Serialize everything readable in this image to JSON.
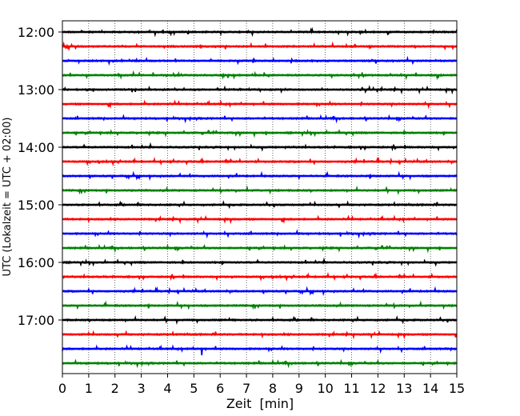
{
  "chart_data": {
    "type": "line",
    "title": "",
    "xlabel": "Zeit  [min]",
    "ylabel": "UTC (Lokalzeit = UTC + 02:00)",
    "xlim": [
      0,
      15
    ],
    "x_ticks": [
      "0",
      "1",
      "2",
      "3",
      "4",
      "5",
      "6",
      "7",
      "8",
      "9",
      "10",
      "11",
      "12",
      "13",
      "14",
      "15"
    ],
    "y_tick_labels": [
      "12:00",
      "13:00",
      "14:00",
      "15:00",
      "16:00",
      "17:00"
    ],
    "grid": "vertical dotted at each minute",
    "trace_interval_minutes": 15,
    "colors_cycle": [
      "#000000",
      "#ff0000",
      "#0000ff",
      "#008000"
    ],
    "series": [
      {
        "start": "12:00",
        "color": "#000000"
      },
      {
        "start": "12:15",
        "color": "#ff0000"
      },
      {
        "start": "12:30",
        "color": "#0000ff"
      },
      {
        "start": "12:45",
        "color": "#008000"
      },
      {
        "start": "13:00",
        "color": "#000000"
      },
      {
        "start": "13:15",
        "color": "#ff0000"
      },
      {
        "start": "13:30",
        "color": "#0000ff"
      },
      {
        "start": "13:45",
        "color": "#008000"
      },
      {
        "start": "14:00",
        "color": "#000000"
      },
      {
        "start": "14:15",
        "color": "#ff0000"
      },
      {
        "start": "14:30",
        "color": "#0000ff"
      },
      {
        "start": "14:45",
        "color": "#008000"
      },
      {
        "start": "15:00",
        "color": "#000000"
      },
      {
        "start": "15:15",
        "color": "#ff0000"
      },
      {
        "start": "15:30",
        "color": "#0000ff"
      },
      {
        "start": "15:45",
        "color": "#008000"
      },
      {
        "start": "16:00",
        "color": "#000000"
      },
      {
        "start": "16:15",
        "color": "#ff0000"
      },
      {
        "start": "16:30",
        "color": "#0000ff"
      },
      {
        "start": "16:45",
        "color": "#008000"
      },
      {
        "start": "17:00",
        "color": "#000000"
      },
      {
        "start": "17:15",
        "color": "#ff0000"
      },
      {
        "start": "17:30",
        "color": "#0000ff",
        "notable_spike_minute": 5.3
      },
      {
        "start": "17:45",
        "color": "#008000"
      }
    ]
  }
}
